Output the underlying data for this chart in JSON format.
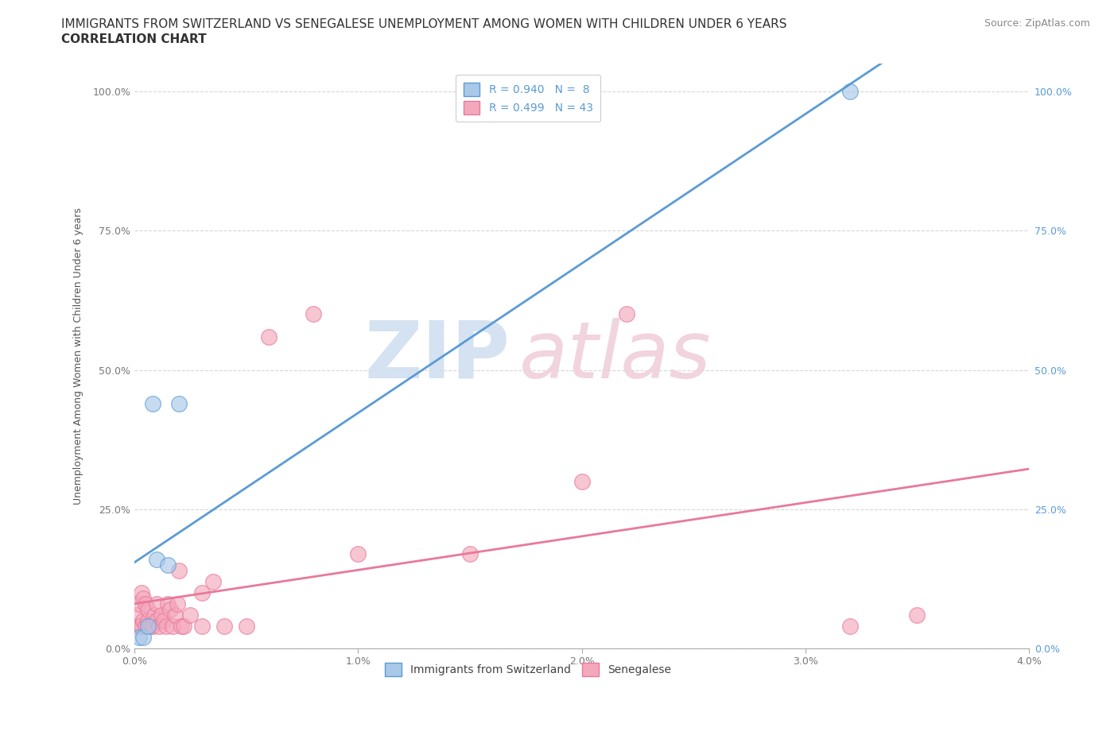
{
  "title_line1": "IMMIGRANTS FROM SWITZERLAND VS SENEGALESE UNEMPLOYMENT AMONG WOMEN WITH CHILDREN UNDER 6 YEARS",
  "title_line2": "CORRELATION CHART",
  "source": "Source: ZipAtlas.com",
  "ylabel": "Unemployment Among Women with Children Under 6 years",
  "xlim": [
    0.0,
    0.04
  ],
  "ylim": [
    0.0,
    1.05
  ],
  "xtick_labels": [
    "0.0%",
    "1.0%",
    "2.0%",
    "3.0%",
    "4.0%"
  ],
  "xtick_vals": [
    0.0,
    0.01,
    0.02,
    0.03,
    0.04
  ],
  "ytick_labels": [
    "0.0%",
    "25.0%",
    "50.0%",
    "75.0%",
    "100.0%"
  ],
  "ytick_vals": [
    0.0,
    0.25,
    0.5,
    0.75,
    1.0
  ],
  "background_color": "#ffffff",
  "watermark_zip": "ZIP",
  "watermark_atlas": "atlas",
  "legend_blue_label": "Immigrants from Switzerland",
  "legend_pink_label": "Senegalese",
  "R_blue": 0.94,
  "N_blue": 8,
  "R_pink": 0.499,
  "N_pink": 43,
  "blue_color": "#aac8e8",
  "blue_line_color": "#5b9bd5",
  "pink_color": "#f4a8bc",
  "pink_line_color": "#e8799a",
  "swiss_x": [
    0.0002,
    0.0004,
    0.0006,
    0.0008,
    0.001,
    0.0015,
    0.002,
    0.032
  ],
  "swiss_y": [
    0.02,
    0.02,
    0.04,
    0.44,
    0.16,
    0.15,
    0.44,
    1.0
  ],
  "senegal_x": [
    0.0001,
    0.0001,
    0.0002,
    0.0002,
    0.0003,
    0.0003,
    0.0004,
    0.0004,
    0.0005,
    0.0005,
    0.0006,
    0.0006,
    0.0007,
    0.0008,
    0.0009,
    0.001,
    0.001,
    0.0011,
    0.0012,
    0.0013,
    0.0014,
    0.0015,
    0.0016,
    0.0017,
    0.0018,
    0.0019,
    0.002,
    0.0021,
    0.0022,
    0.0025,
    0.003,
    0.003,
    0.0035,
    0.004,
    0.005,
    0.006,
    0.008,
    0.01,
    0.015,
    0.02,
    0.022,
    0.032,
    0.035
  ],
  "senegal_y": [
    0.04,
    0.06,
    0.04,
    0.08,
    0.04,
    0.1,
    0.05,
    0.09,
    0.04,
    0.08,
    0.05,
    0.07,
    0.04,
    0.04,
    0.06,
    0.05,
    0.08,
    0.04,
    0.06,
    0.05,
    0.04,
    0.08,
    0.07,
    0.04,
    0.06,
    0.08,
    0.14,
    0.04,
    0.04,
    0.06,
    0.04,
    0.1,
    0.12,
    0.04,
    0.04,
    0.56,
    0.6,
    0.17,
    0.17,
    0.3,
    0.6,
    0.04,
    0.06
  ],
  "title_fontsize": 11,
  "axis_label_fontsize": 9,
  "tick_fontsize": 9,
  "legend_fontsize": 10,
  "source_fontsize": 9
}
